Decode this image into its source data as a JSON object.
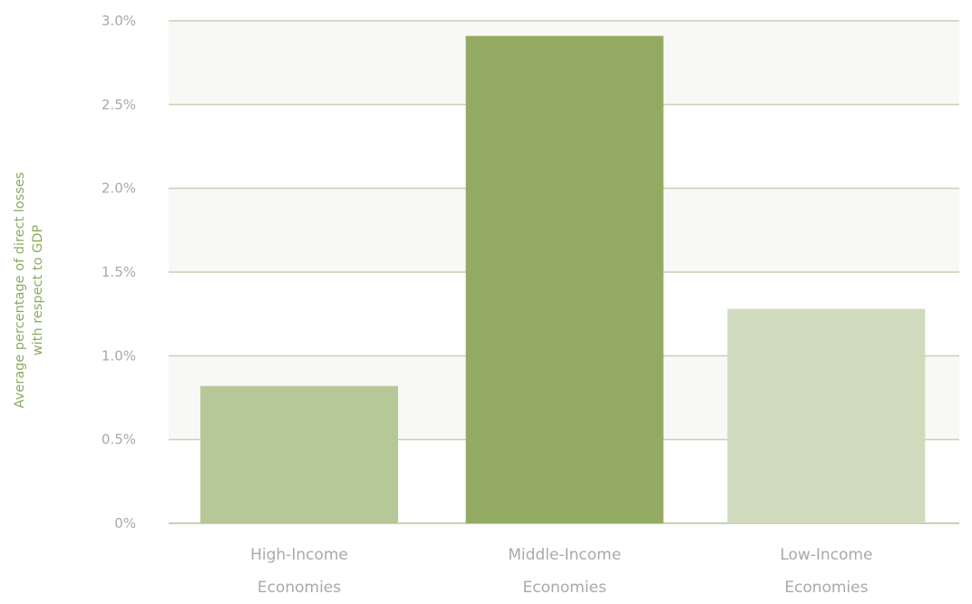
{
  "chart_data": {
    "type": "bar",
    "title": "",
    "xlabel": "",
    "ylabel_lines": [
      "Average percentage of direct losses",
      "with respect to GDP"
    ],
    "categories_lines": [
      [
        "High-Income",
        "Economies"
      ],
      [
        "Middle-Income",
        "Economies"
      ],
      [
        "Low-Income",
        "Economies"
      ]
    ],
    "values": [
      0.82,
      2.91,
      1.28
    ],
    "ylim": [
      0,
      3.0
    ],
    "yticks": [
      {
        "value": 0,
        "label": "0%"
      },
      {
        "value": 0.5,
        "label": "0.5%"
      },
      {
        "value": 1.0,
        "label": "1.0%"
      },
      {
        "value": 1.5,
        "label": "1.5%"
      },
      {
        "value": 2.0,
        "label": "2.0%"
      },
      {
        "value": 2.5,
        "label": "2.5%"
      },
      {
        "value": 3.0,
        "label": "3.0%"
      }
    ],
    "grid": true,
    "legend": "none",
    "colors": {
      "bars": [
        "#b7c898",
        "#93aa62",
        "#d0dabd"
      ],
      "band": "#f8f8f6",
      "gridline": "#c6d1b2",
      "axis_title": "#8cab5f",
      "tick_text": "#a9a9a9"
    }
  }
}
